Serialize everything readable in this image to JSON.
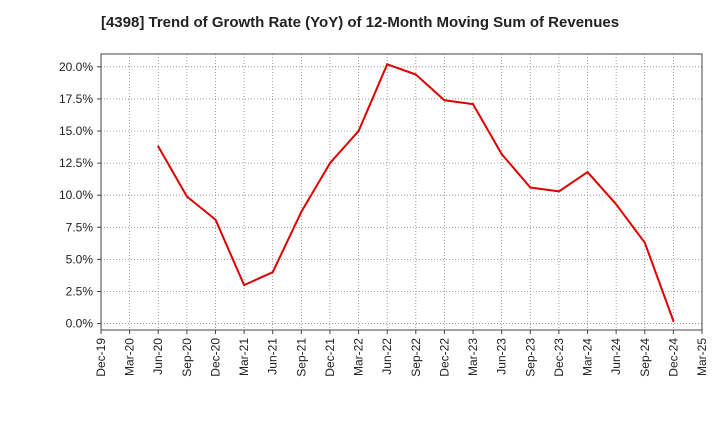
{
  "chart_data": {
    "type": "line",
    "title": "[4398]  Trend of Growth Rate (YoY) of 12-Month Moving Sum of Revenues",
    "xlabel": "",
    "ylabel": "",
    "x_ticks": [
      "Dec-19",
      "Mar-20",
      "Jun-20",
      "Sep-20",
      "Dec-20",
      "Mar-21",
      "Jun-21",
      "Sep-21",
      "Dec-21",
      "Mar-22",
      "Jun-22",
      "Sep-22",
      "Dec-22",
      "Mar-23",
      "Jun-23",
      "Sep-23",
      "Dec-23",
      "Mar-24",
      "Jun-24",
      "Sep-24",
      "Dec-24",
      "Mar-25"
    ],
    "y_ticks": [
      "0.0%",
      "2.5%",
      "5.0%",
      "7.5%",
      "10.0%",
      "12.5%",
      "15.0%",
      "17.5%",
      "20.0%"
    ],
    "y_tick_values": [
      0,
      2.5,
      5,
      7.5,
      10,
      12.5,
      15,
      17.5,
      20
    ],
    "ylim": [
      -0.5,
      21
    ],
    "grid": true,
    "series": [
      {
        "color": "#dd0000",
        "x": [
          "Jun-20",
          "Sep-20",
          "Dec-20",
          "Mar-21",
          "Jun-21",
          "Sep-21",
          "Dec-21",
          "Mar-22",
          "Jun-22",
          "Sep-22",
          "Dec-22",
          "Mar-23",
          "Jun-23",
          "Sep-23",
          "Dec-23",
          "Mar-24",
          "Jun-24",
          "Sep-24",
          "Dec-24"
        ],
        "values": [
          13.8,
          9.9,
          8.1,
          3.0,
          4.0,
          8.7,
          12.5,
          15.0,
          20.2,
          19.4,
          17.4,
          17.1,
          13.2,
          10.6,
          10.3,
          11.8,
          9.3,
          6.3,
          0.2
        ]
      }
    ]
  }
}
